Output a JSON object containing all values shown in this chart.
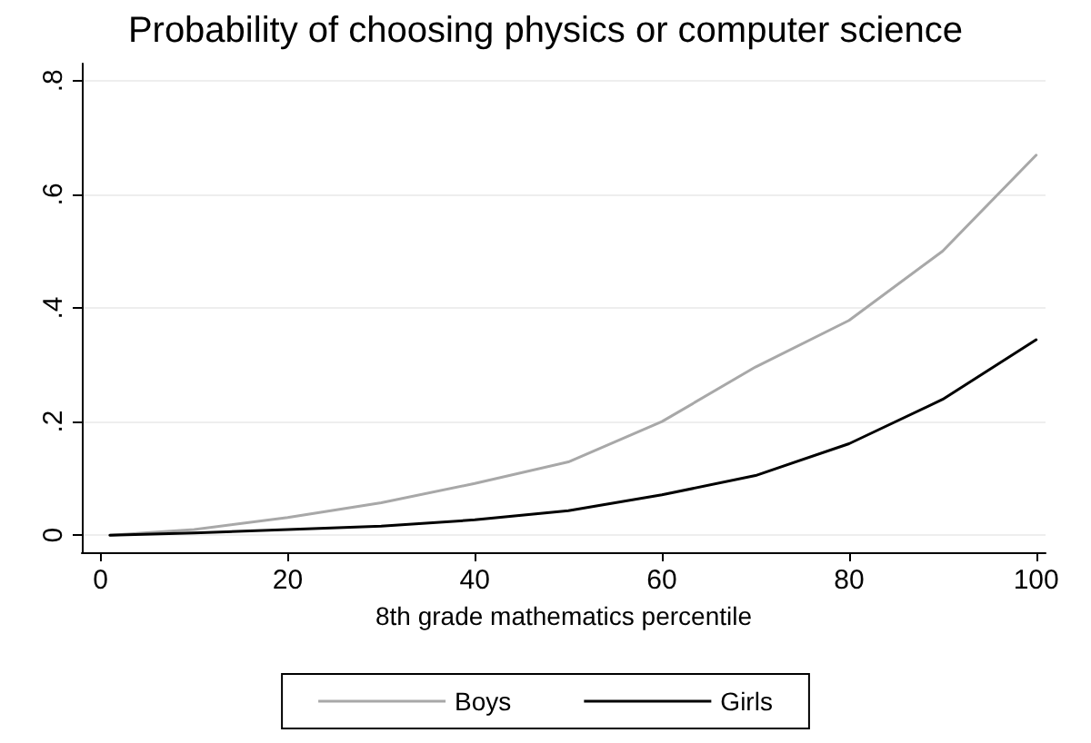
{
  "chart_data": {
    "type": "line",
    "title": "Probability of choosing physics or computer science",
    "xlabel": "8th grade mathematics percentile",
    "x": [
      1,
      10,
      20,
      30,
      40,
      50,
      60,
      70,
      80,
      90,
      100
    ],
    "series": [
      {
        "name": "Boys",
        "color": "#a8a8a8",
        "values": [
          0,
          0.01,
          0.031,
          0.057,
          0.091,
          0.129,
          0.2,
          0.296,
          0.378,
          0.5,
          0.669
        ]
      },
      {
        "name": "Girls",
        "color": "#000000",
        "values": [
          0,
          0.004,
          0.01,
          0.016,
          0.027,
          0.043,
          0.071,
          0.105,
          0.161,
          0.239,
          0.344
        ]
      }
    ],
    "xlim": [
      -2,
      101
    ],
    "xticks": [
      0,
      20,
      40,
      60,
      80,
      100
    ],
    "ylim": [
      -0.03,
      0.83
    ],
    "yticks": [
      {
        "value": 0,
        "label": "0"
      },
      {
        "value": 0.2,
        "label": ".2"
      },
      {
        "value": 0.4,
        "label": ".4"
      },
      {
        "value": 0.6,
        "label": ".6"
      },
      {
        "value": 0.8,
        "label": ".8"
      }
    ],
    "grid": "y",
    "legend": "bottom",
    "marker": "none",
    "line_style": "solid"
  }
}
